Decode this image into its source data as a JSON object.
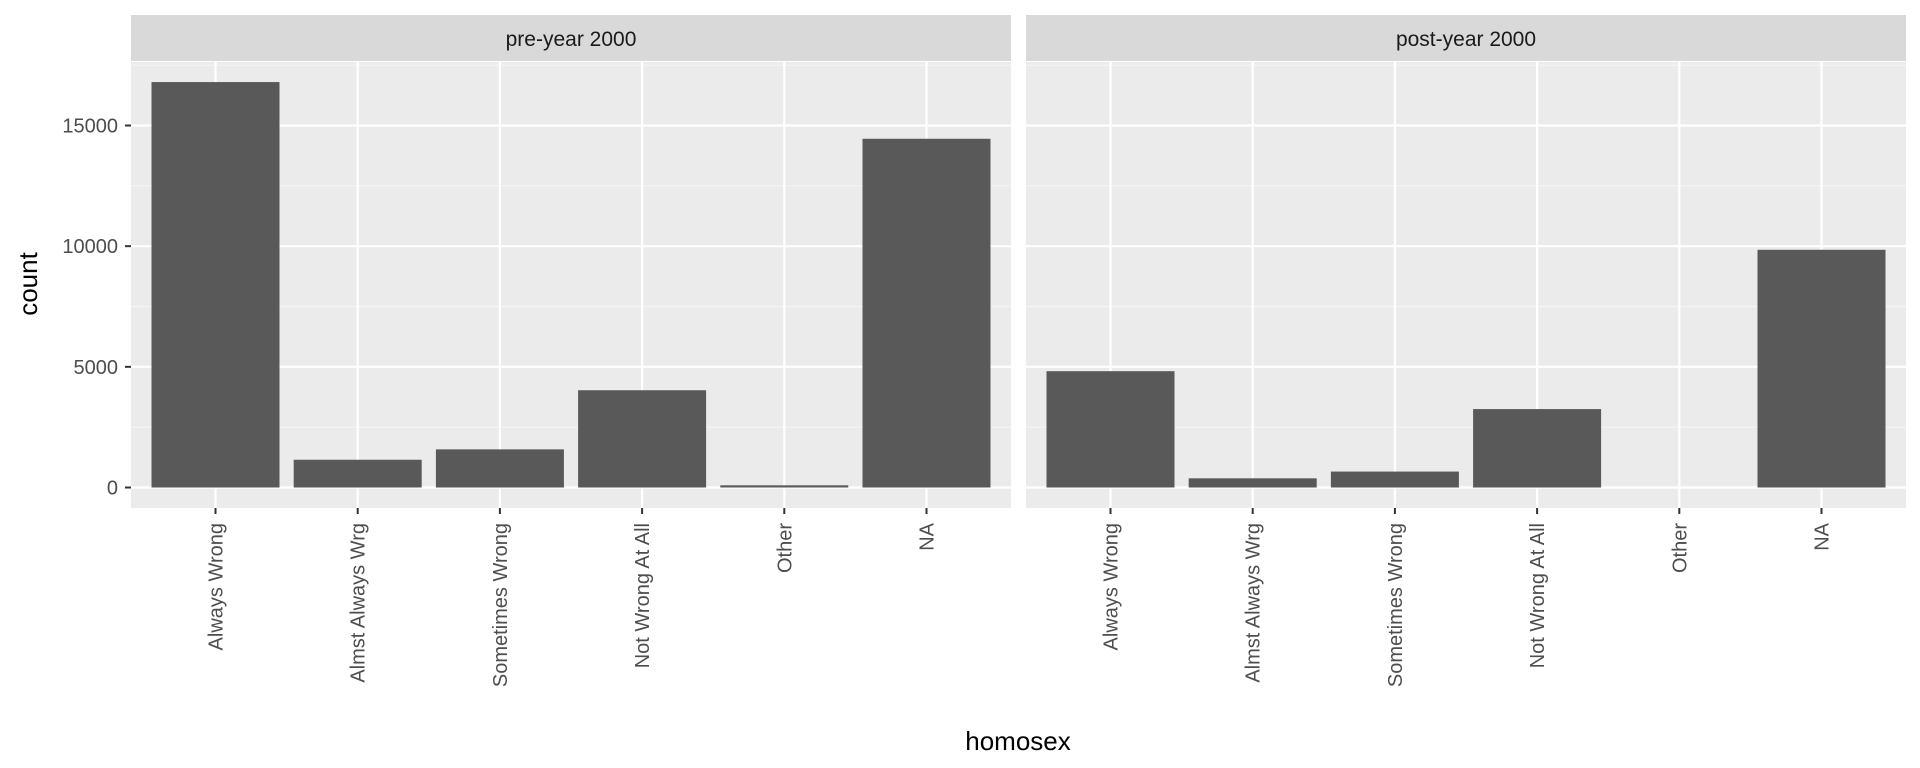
{
  "chart_data": {
    "type": "bar",
    "xlabel": "homosex",
    "ylabel": "count",
    "ylim": [
      0,
      17500
    ],
    "yticks": [
      0,
      5000,
      10000,
      15000
    ],
    "ytick_labels": [
      "0",
      "5000",
      "10000",
      "15000"
    ],
    "categories": [
      "Always Wrong",
      "Almst Always Wrg",
      "Sometimes Wrong",
      "Not Wrong At All",
      "Other",
      "NA"
    ],
    "panels": [
      {
        "title": "pre-year 2000",
        "values": [
          16800,
          1150,
          1580,
          4030,
          90,
          14450
        ]
      },
      {
        "title": "post-year 2000",
        "values": [
          4820,
          380,
          660,
          3250,
          0,
          9850
        ]
      }
    ],
    "grid": true,
    "legend": "none",
    "colors": {
      "bar": "#595959",
      "panel_bg": "#ebebeb",
      "grid_major": "#ffffff",
      "grid_minor": "#f5f5f5",
      "strip_bg": "#d9d9d9",
      "tick": "#333333"
    }
  }
}
